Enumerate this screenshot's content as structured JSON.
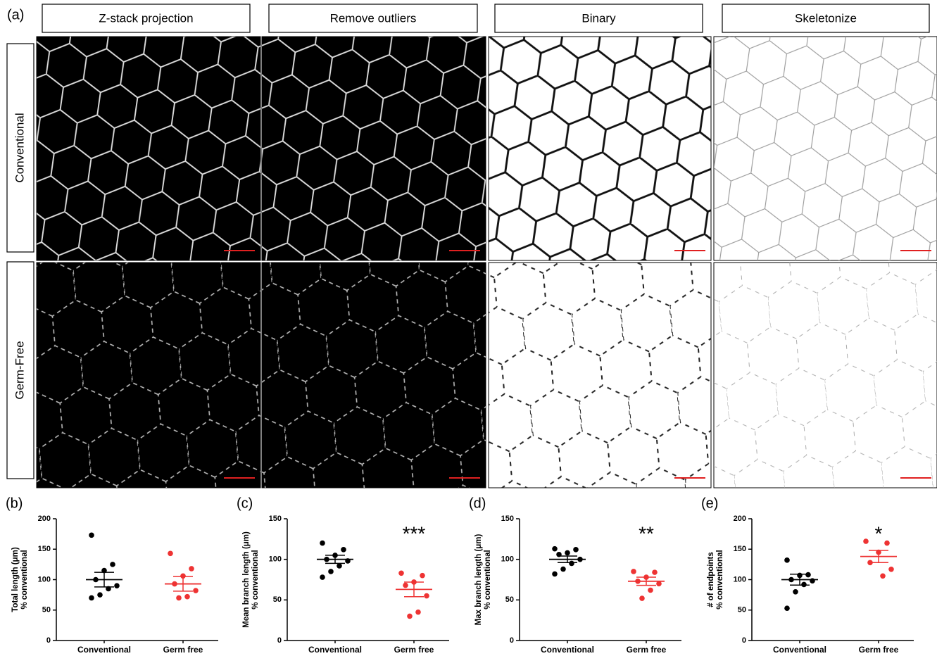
{
  "panel_a": {
    "label": "(a)",
    "columns": [
      "Z-stack  projection",
      "Remove outliers",
      "Binary",
      "Skeletonize"
    ],
    "rows": [
      "Conventional",
      "Germ-Free"
    ]
  },
  "chart_data": [
    {
      "type": "scatter",
      "panel": "(b)",
      "ylabel": "Total length (μm)",
      "ylabel2": "% conventional",
      "categories": [
        "Conventional",
        "Germ free"
      ],
      "ylim": [
        0,
        200
      ],
      "yticks": [
        0,
        50,
        100,
        150,
        200
      ],
      "groups": [
        {
          "color": "#000000",
          "values": [
            173,
            125,
            115,
            100,
            90,
            85,
            75,
            70
          ],
          "mean": 100,
          "sem": 12
        },
        {
          "color": "#ee3333",
          "values": [
            143,
            118,
            106,
            93,
            82,
            72,
            70
          ],
          "mean": 93,
          "sem": 12
        }
      ]
    },
    {
      "type": "scatter",
      "panel": "(c)",
      "ylabel": "Mean branch length (μm)",
      "ylabel2": "% conventional",
      "categories": [
        "Conventional",
        "Germ free"
      ],
      "ylim": [
        0,
        150
      ],
      "yticks": [
        0,
        50,
        100,
        150
      ],
      "annotation": "***",
      "groups": [
        {
          "color": "#000000",
          "values": [
            120,
            112,
            105,
            100,
            98,
            92,
            85,
            78
          ],
          "mean": 100,
          "sem": 5
        },
        {
          "color": "#ee3333",
          "values": [
            83,
            80,
            72,
            68,
            55,
            35,
            30
          ],
          "mean": 63,
          "sem": 9
        }
      ]
    },
    {
      "type": "scatter",
      "panel": "(d)",
      "ylabel": "Max branch length (μm)",
      "ylabel2": "% conventional",
      "categories": [
        "Conventional",
        "Germ free"
      ],
      "ylim": [
        0,
        150
      ],
      "yticks": [
        0,
        50,
        100,
        150
      ],
      "annotation": "**",
      "groups": [
        {
          "color": "#000000",
          "values": [
            113,
            112,
            108,
            106,
            100,
            95,
            88,
            82
          ],
          "mean": 100,
          "sem": 4
        },
        {
          "color": "#ee3333",
          "values": [
            85,
            84,
            78,
            73,
            70,
            62,
            52
          ],
          "mean": 73,
          "sem": 5
        }
      ]
    },
    {
      "type": "scatter",
      "panel": "(e)",
      "ylabel": "# of endpoints",
      "ylabel2": "% conventional",
      "categories": [
        "Conventional",
        "Germ free"
      ],
      "ylim": [
        0,
        200
      ],
      "yticks": [
        0,
        50,
        100,
        150,
        200
      ],
      "annotation": "*",
      "groups": [
        {
          "color": "#000000",
          "values": [
            132,
            108,
            107,
            100,
            98,
            92,
            80,
            53
          ],
          "mean": 100,
          "sem": 9
        },
        {
          "color": "#ee3333",
          "values": [
            163,
            160,
            145,
            128,
            117,
            106
          ],
          "mean": 138,
          "sem": 10
        }
      ]
    }
  ]
}
